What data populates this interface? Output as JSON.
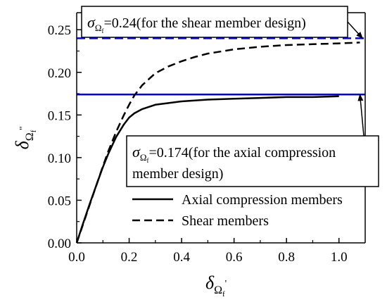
{
  "chart_data": {
    "type": "line",
    "title": "",
    "xlabel": {
      "symbol": "δ",
      "sub": "Ω",
      "subsub": "f",
      "prime": "'"
    },
    "ylabel": {
      "symbol": "δ",
      "sub": "Ω",
      "subsub": "f",
      "prime": "''"
    },
    "xlim": [
      0,
      1.1
    ],
    "ylim": [
      0,
      0.27
    ],
    "xticks": [
      0.0,
      0.2,
      0.4,
      0.6,
      0.8,
      1.0
    ],
    "xtick_labels": [
      "0.0",
      "0.2",
      "0.4",
      "0.6",
      "0.8",
      "1.0"
    ],
    "yticks": [
      0.0,
      0.05,
      0.1,
      0.15,
      0.2,
      0.25
    ],
    "ytick_labels": [
      "0.00",
      "0.05",
      "0.10",
      "0.15",
      "0.20",
      "0.25"
    ],
    "grid": false,
    "legend_position": "bottom-right",
    "series": [
      {
        "name": "Axial compression members",
        "style": "solid",
        "color": "#000000",
        "x": [
          0,
          0.02,
          0.05,
          0.08,
          0.1,
          0.12,
          0.15,
          0.18,
          0.2,
          0.22,
          0.25,
          0.3,
          0.35,
          0.4,
          0.45,
          0.5,
          0.6,
          0.7,
          0.8,
          0.9,
          1.0
        ],
        "y": [
          0,
          0.019,
          0.046,
          0.072,
          0.089,
          0.104,
          0.124,
          0.139,
          0.147,
          0.152,
          0.157,
          0.162,
          0.164,
          0.166,
          0.167,
          0.168,
          0.169,
          0.17,
          0.171,
          0.171,
          0.172
        ]
      },
      {
        "name": "Shear members",
        "style": "dashed",
        "color": "#000000",
        "x": [
          0,
          0.02,
          0.05,
          0.08,
          0.1,
          0.12,
          0.15,
          0.18,
          0.2,
          0.22,
          0.25,
          0.3,
          0.35,
          0.4,
          0.45,
          0.5,
          0.6,
          0.7,
          0.8,
          0.9,
          1.0,
          1.08
        ],
        "y": [
          0,
          0.018,
          0.045,
          0.072,
          0.09,
          0.107,
          0.13,
          0.15,
          0.162,
          0.173,
          0.185,
          0.199,
          0.207,
          0.213,
          0.218,
          0.222,
          0.227,
          0.23,
          0.232,
          0.233,
          0.234,
          0.235
        ]
      }
    ],
    "reference_lines": [
      {
        "y": 0.24,
        "color": "#0000ff",
        "style": "dashed"
      },
      {
        "y": 0.174,
        "color": "#0000ff",
        "style": "solid"
      }
    ],
    "annotations": [
      {
        "symbol": "σ",
        "sub": "Ω",
        "subsub": "f",
        "lines": [
          "=0.24(for the shear member design)"
        ],
        "points_to": [
          1.09,
          0.24
        ]
      },
      {
        "symbol": "σ",
        "sub": "Ω",
        "subsub": "f",
        "lines": [
          "=0.174(for the axial compression",
          "member design)"
        ],
        "points_to": [
          1.08,
          0.174
        ]
      }
    ]
  }
}
